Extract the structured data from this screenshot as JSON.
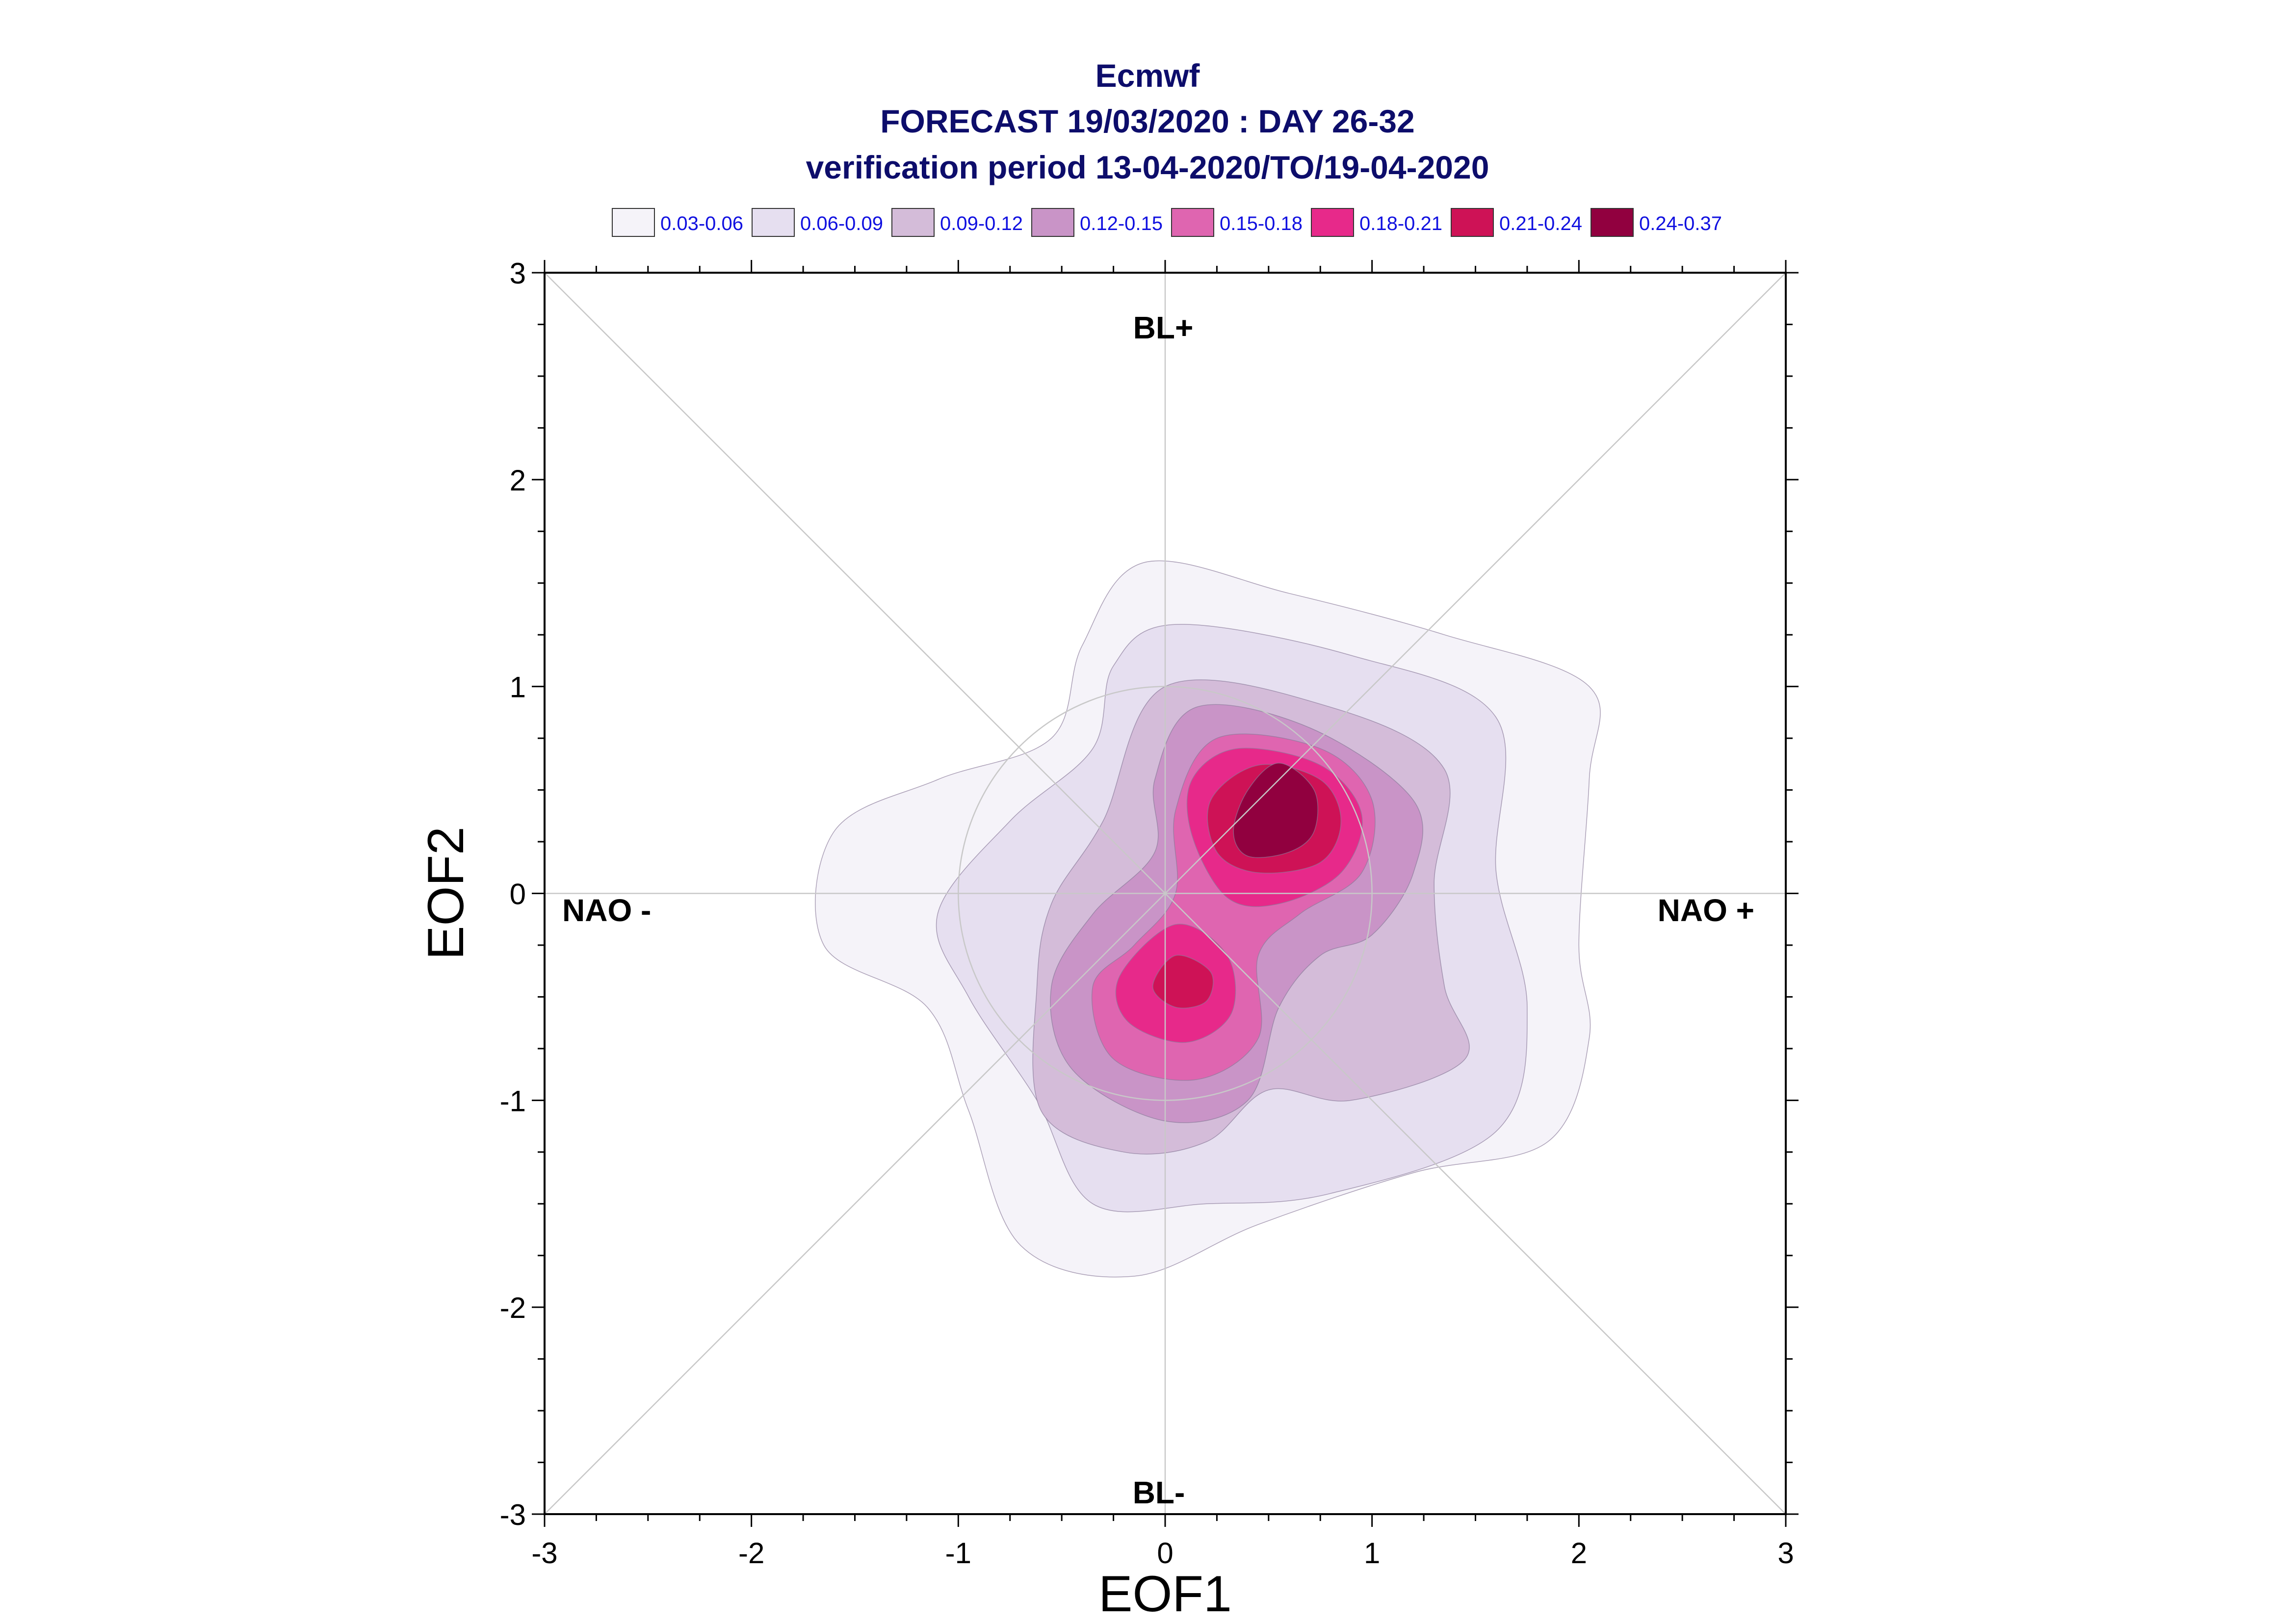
{
  "chart_data": {
    "type": "contour",
    "title": "Ecmwf",
    "subtitle_1": "FORECAST 19/03/2020 : DAY 26-32",
    "subtitle_2": "verification period 13-04-2020/TO/19-04-2020",
    "xlabel": "EOF1",
    "ylabel": "EOF2",
    "xlim": [
      -3,
      3
    ],
    "ylim": [
      -3,
      3
    ],
    "xticks": [
      "-3",
      "-2",
      "-1",
      "0",
      "1",
      "2",
      "3"
    ],
    "yticks": [
      "-3",
      "-2",
      "-1",
      "0",
      "1",
      "2",
      "3"
    ],
    "regime_labels": {
      "top": "BL+",
      "bottom": "BL-",
      "left": "NAO -",
      "right": "NAO +"
    },
    "legend": [
      {
        "label": "0.03-0.06",
        "color": "#f5f3f9"
      },
      {
        "label": "0.06-0.09",
        "color": "#e6dff0"
      },
      {
        "label": "0.09-0.12",
        "color": "#d4bcd9"
      },
      {
        "label": "0.12-0.15",
        "color": "#c994c7"
      },
      {
        "label": "0.15-0.18",
        "color": "#df65b0"
      },
      {
        "label": "0.18-0.21",
        "color": "#e7298a"
      },
      {
        "label": "0.21-0.24",
        "color": "#ce1256"
      },
      {
        "label": "0.24-0.37",
        "color": "#91003f"
      }
    ],
    "reference_circle": {
      "center": [
        0,
        0
      ],
      "radius": 1.0
    },
    "density_maxima": [
      {
        "x": 0.55,
        "y": 0.45,
        "level": "0.24-0.37"
      },
      {
        "x": 0.05,
        "y": -0.42,
        "level": "0.21-0.24"
      }
    ]
  }
}
